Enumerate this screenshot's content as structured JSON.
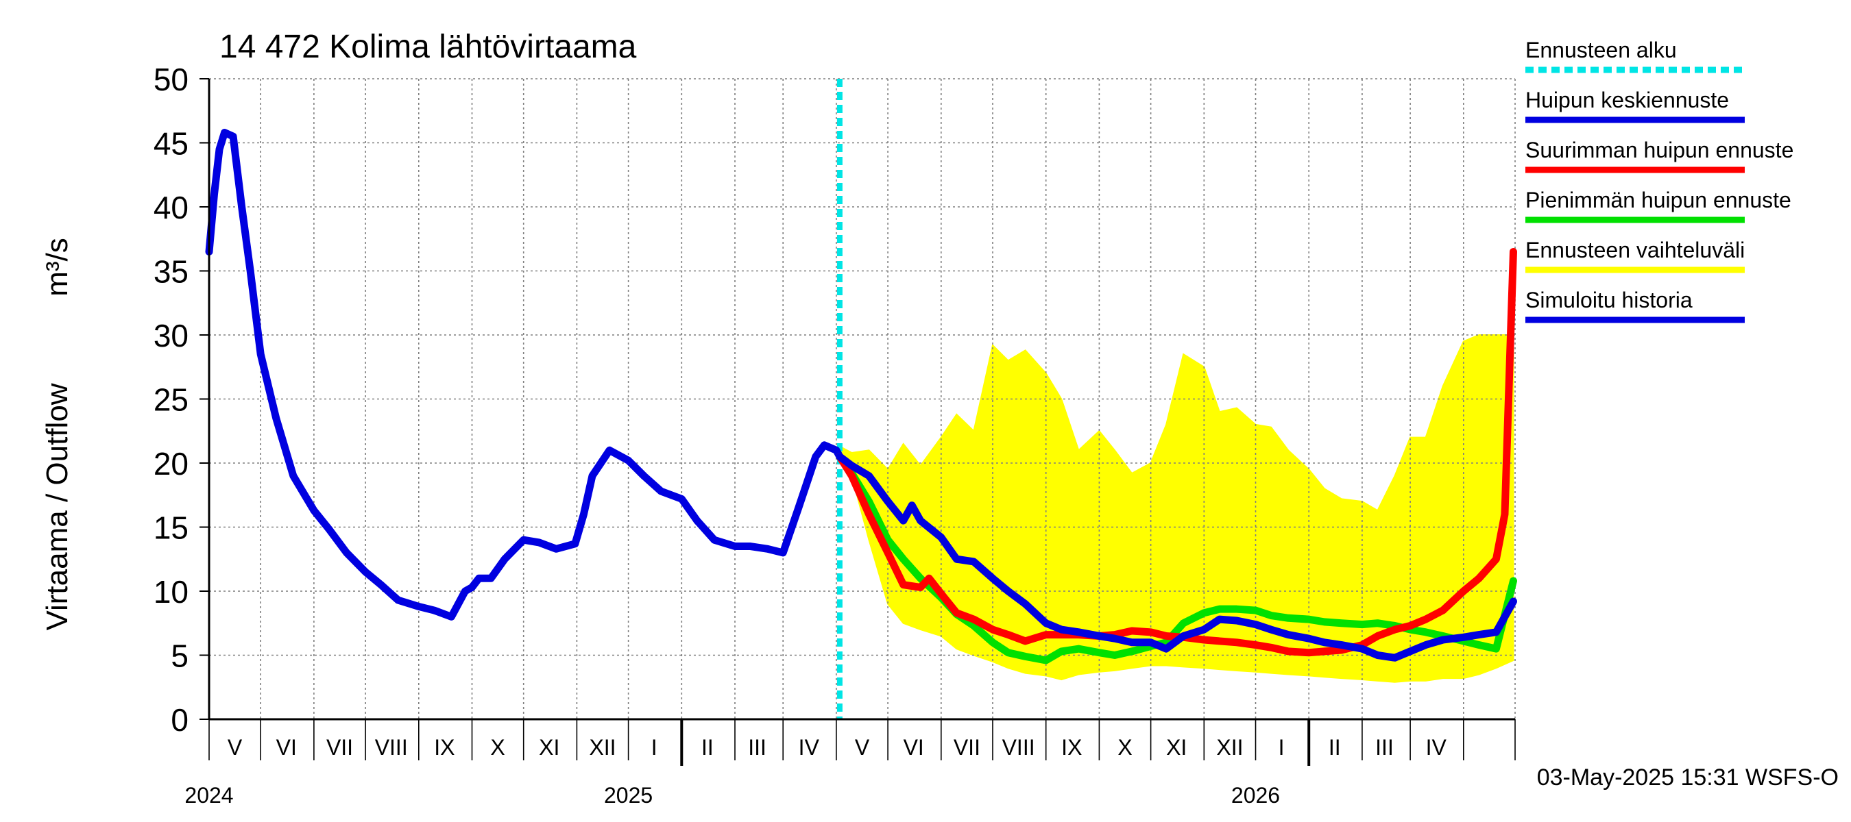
{
  "chart_data": {
    "type": "area",
    "title": "14 472 Kolima lähtövirtaama",
    "ylabel": "Virtaama / Outflow",
    "yunit": "m³/s",
    "ylim": [
      0,
      50
    ],
    "yticks": [
      0,
      5,
      10,
      15,
      20,
      25,
      30,
      35,
      40,
      45,
      50
    ],
    "xlim": [
      "2024-04-01",
      "2026-05-01"
    ],
    "grid": true,
    "month_labels": [
      {
        "label": "V",
        "date": "2024-04-16"
      },
      {
        "label": "VI",
        "date": "2024-05-16"
      },
      {
        "label": "VII",
        "date": "2024-06-16"
      },
      {
        "label": "VIII",
        "date": "2024-07-16"
      },
      {
        "label": "IX",
        "date": "2024-08-16"
      },
      {
        "label": "X",
        "date": "2024-09-16"
      },
      {
        "label": "XI",
        "date": "2024-10-16"
      },
      {
        "label": "XII",
        "date": "2024-11-16"
      },
      {
        "label": "I",
        "date": "2024-12-16"
      },
      {
        "label": "II",
        "date": "2025-01-16"
      },
      {
        "label": "III",
        "date": "2025-02-14"
      },
      {
        "label": "IV",
        "date": "2025-03-16"
      },
      {
        "label": "V",
        "date": "2025-04-16"
      },
      {
        "label": "VI",
        "date": "2025-05-16"
      },
      {
        "label": "VII",
        "date": "2025-06-16"
      },
      {
        "label": "VIII",
        "date": "2025-07-16"
      },
      {
        "label": "IX",
        "date": "2025-08-16"
      },
      {
        "label": "X",
        "date": "2025-09-16"
      },
      {
        "label": "XI",
        "date": "2025-10-16"
      },
      {
        "label": "XII",
        "date": "2025-11-16"
      },
      {
        "label": "I",
        "date": "2025-12-16"
      },
      {
        "label": "II",
        "date": "2026-01-16"
      },
      {
        "label": "III",
        "date": "2026-02-14"
      },
      {
        "label": "IV",
        "date": "2026-03-16"
      }
    ],
    "year_labels": [
      {
        "label": "2024",
        "date": "2024-04-01"
      },
      {
        "label": "2025",
        "date": "2024-12-01"
      },
      {
        "label": "2026",
        "date": "2025-12-01"
      }
    ],
    "forecast_start": "2025-04-03",
    "timestamp": "03-May-2025 15:31 WSFS-O",
    "legend": [
      {
        "label": "Ennusteen alku",
        "color": "#00e5e5",
        "style": "dashed"
      },
      {
        "label": "Huipun keskiennuste",
        "color": "#0000e0",
        "style": "solid"
      },
      {
        "label": "Suurimman huipun ennuste",
        "color": "#ff0000",
        "style": "solid"
      },
      {
        "label": "Pienimmän huipun ennuste",
        "color": "#00e000",
        "style": "solid"
      },
      {
        "label": "Ennusteen vaihteluväli",
        "color": "#ffff00",
        "style": "solid"
      },
      {
        "label": "Simuloitu historia",
        "color": "#0000e0",
        "style": "solid"
      }
    ],
    "series": [
      {
        "name": "Ennusteen vaihteluväli",
        "color": "#ffff00",
        "kind": "band",
        "x": [
          "2025-04-03",
          "2025-04-10",
          "2025-04-20",
          "2025-05-01",
          "2025-05-10",
          "2025-05-20",
          "2025-06-01",
          "2025-06-10",
          "2025-06-20",
          "2025-07-01",
          "2025-07-10",
          "2025-07-20",
          "2025-08-01",
          "2025-08-10",
          "2025-08-20",
          "2025-09-01",
          "2025-09-10",
          "2025-09-20",
          "2025-10-01",
          "2025-10-10",
          "2025-10-20",
          "2025-11-01",
          "2025-11-10",
          "2025-11-20",
          "2025-12-01",
          "2025-12-10",
          "2025-12-20",
          "2026-01-01",
          "2026-01-10",
          "2026-01-20",
          "2026-02-01",
          "2026-02-10",
          "2026-02-20",
          "2026-03-01",
          "2026-03-10",
          "2026-03-20",
          "2026-04-01",
          "2026-04-10",
          "2026-04-20",
          "2026-04-30"
        ],
        "high": [
          21.3,
          20.8,
          21.0,
          19.5,
          21.5,
          19.8,
          22.0,
          23.8,
          22.5,
          29.2,
          28.0,
          28.8,
          27.0,
          25.0,
          21.0,
          22.5,
          21.0,
          19.2,
          20.0,
          23.0,
          28.5,
          27.5,
          24.0,
          24.3,
          23.0,
          22.8,
          21.0,
          19.5,
          18.0,
          17.2,
          17.0,
          16.3,
          19.0,
          22.0,
          22.0,
          26.0,
          29.5,
          30.0,
          30.0,
          30.0
        ],
        "low": [
          21.0,
          19.0,
          14.0,
          9.0,
          7.5,
          7.0,
          6.5,
          5.5,
          5.0,
          4.5,
          4.0,
          3.6,
          3.4,
          3.1,
          3.5,
          3.7,
          3.8,
          4.0,
          4.2,
          4.2,
          4.1,
          4.0,
          3.9,
          3.8,
          3.7,
          3.6,
          3.5,
          3.4,
          3.3,
          3.2,
          3.1,
          3.0,
          2.9,
          3.0,
          3.0,
          3.2,
          3.2,
          3.5,
          4.0,
          4.6
        ]
      },
      {
        "name": "Simuloitu historia",
        "color": "#0000e0",
        "x": [
          "2024-04-01",
          "2024-04-04",
          "2024-04-07",
          "2024-04-10",
          "2024-04-15",
          "2024-04-20",
          "2024-04-25",
          "2024-05-01",
          "2024-05-10",
          "2024-05-20",
          "2024-06-01",
          "2024-06-10",
          "2024-06-20",
          "2024-07-01",
          "2024-07-10",
          "2024-07-20",
          "2024-08-01",
          "2024-08-10",
          "2024-08-20",
          "2024-08-28",
          "2024-09-01",
          "2024-09-05",
          "2024-09-12",
          "2024-09-20",
          "2024-10-01",
          "2024-10-10",
          "2024-10-20",
          "2024-10-31",
          "2024-11-05",
          "2024-11-10",
          "2024-11-20",
          "2024-12-01",
          "2024-12-10",
          "2024-12-20",
          "2025-01-01",
          "2025-01-10",
          "2025-01-20",
          "2025-02-01",
          "2025-02-10",
          "2025-02-20",
          "2025-03-01",
          "2025-03-10",
          "2025-03-20",
          "2025-03-25",
          "2025-04-01",
          "2025-04-03"
        ],
        "y": [
          36.5,
          41.0,
          44.5,
          45.8,
          45.5,
          40.0,
          35.0,
          28.5,
          23.5,
          19.0,
          16.3,
          14.8,
          13.0,
          11.5,
          10.5,
          9.3,
          8.8,
          8.5,
          8.0,
          10.0,
          10.3,
          11.0,
          11.0,
          12.5,
          14.0,
          13.8,
          13.3,
          13.7,
          16.0,
          19.0,
          21.0,
          20.2,
          19.0,
          17.8,
          17.2,
          15.5,
          14.0,
          13.5,
          13.5,
          13.3,
          13.0,
          16.5,
          20.5,
          21.4,
          21.0,
          20.5
        ]
      },
      {
        "name": "Huipun keskiennuste",
        "color": "#0000e0",
        "x": [
          "2025-04-03",
          "2025-04-10",
          "2025-04-20",
          "2025-05-01",
          "2025-05-10",
          "2025-05-15",
          "2025-05-20",
          "2025-06-01",
          "2025-06-10",
          "2025-06-20",
          "2025-07-01",
          "2025-07-10",
          "2025-07-20",
          "2025-08-01",
          "2025-08-10",
          "2025-08-20",
          "2025-09-01",
          "2025-09-10",
          "2025-09-20",
          "2025-10-01",
          "2025-10-10",
          "2025-10-20",
          "2025-11-01",
          "2025-11-10",
          "2025-11-20",
          "2025-12-01",
          "2025-12-10",
          "2025-12-20",
          "2026-01-01",
          "2026-01-10",
          "2026-01-20",
          "2026-02-01",
          "2026-02-10",
          "2026-02-20",
          "2026-03-01",
          "2026-03-10",
          "2026-03-20",
          "2026-04-01",
          "2026-04-10",
          "2026-04-20",
          "2026-04-30"
        ],
        "y": [
          20.5,
          19.8,
          19.0,
          17.0,
          15.5,
          16.7,
          15.5,
          14.2,
          12.5,
          12.3,
          11.0,
          10.0,
          9.0,
          7.5,
          7.0,
          6.8,
          6.5,
          6.3,
          6.0,
          6.0,
          5.5,
          6.5,
          7.0,
          7.8,
          7.7,
          7.4,
          7.0,
          6.6,
          6.3,
          6.0,
          5.8,
          5.5,
          5.0,
          4.8,
          5.3,
          5.8,
          6.2,
          6.4,
          6.6,
          6.8,
          9.2
        ]
      },
      {
        "name": "Suurimman huipun ennuste",
        "color": "#ff0000",
        "x": [
          "2025-04-03",
          "2025-04-10",
          "2025-04-20",
          "2025-05-01",
          "2025-05-10",
          "2025-05-20",
          "2025-05-25",
          "2025-06-01",
          "2025-06-10",
          "2025-06-20",
          "2025-07-01",
          "2025-07-10",
          "2025-07-20",
          "2025-08-01",
          "2025-08-10",
          "2025-08-20",
          "2025-09-01",
          "2025-09-10",
          "2025-09-20",
          "2025-10-01",
          "2025-10-10",
          "2025-10-20",
          "2025-11-01",
          "2025-11-10",
          "2025-11-20",
          "2025-12-01",
          "2025-12-10",
          "2025-12-20",
          "2026-01-01",
          "2026-01-10",
          "2026-01-20",
          "2026-02-01",
          "2026-02-10",
          "2026-02-20",
          "2026-03-01",
          "2026-03-10",
          "2026-03-20",
          "2026-04-01",
          "2026-04-10",
          "2026-04-20",
          "2026-04-25",
          "2026-04-30"
        ],
        "y": [
          20.5,
          19.0,
          16.0,
          13.0,
          10.5,
          10.3,
          11.0,
          9.8,
          8.3,
          7.8,
          7.0,
          6.6,
          6.1,
          6.6,
          6.6,
          6.6,
          6.5,
          6.6,
          6.9,
          6.8,
          6.5,
          6.4,
          6.2,
          6.1,
          6.0,
          5.8,
          5.6,
          5.3,
          5.2,
          5.3,
          5.4,
          5.8,
          6.5,
          7.0,
          7.3,
          7.8,
          8.5,
          10.0,
          11.0,
          12.5,
          16.0,
          36.5
        ]
      },
      {
        "name": "Pienimmän huipun ennuste",
        "color": "#00e000",
        "x": [
          "2025-04-03",
          "2025-04-10",
          "2025-04-20",
          "2025-05-01",
          "2025-05-10",
          "2025-05-20",
          "2025-06-01",
          "2025-06-10",
          "2025-06-20",
          "2025-07-01",
          "2025-07-10",
          "2025-07-20",
          "2025-08-01",
          "2025-08-10",
          "2025-08-20",
          "2025-09-01",
          "2025-09-10",
          "2025-09-20",
          "2025-10-01",
          "2025-10-10",
          "2025-10-20",
          "2025-11-01",
          "2025-11-10",
          "2025-11-20",
          "2025-12-01",
          "2025-12-10",
          "2025-12-20",
          "2026-01-01",
          "2026-01-10",
          "2026-01-20",
          "2026-02-01",
          "2026-02-10",
          "2026-02-20",
          "2026-03-01",
          "2026-03-10",
          "2026-03-20",
          "2026-04-01",
          "2026-04-10",
          "2026-04-20",
          "2026-04-30"
        ],
        "y": [
          20.5,
          19.2,
          17.0,
          14.0,
          12.5,
          11.0,
          9.5,
          8.2,
          7.3,
          6.0,
          5.2,
          4.9,
          4.6,
          5.3,
          5.5,
          5.2,
          5.0,
          5.3,
          5.7,
          6.0,
          7.5,
          8.3,
          8.6,
          8.6,
          8.5,
          8.1,
          7.9,
          7.8,
          7.6,
          7.5,
          7.4,
          7.5,
          7.3,
          7.0,
          6.8,
          6.5,
          6.1,
          5.8,
          5.5,
          10.8
        ]
      }
    ]
  }
}
